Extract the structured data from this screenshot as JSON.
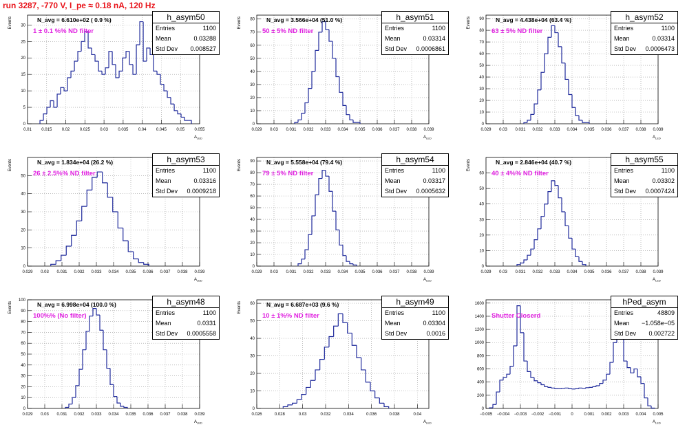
{
  "run_title": "run 3287,  -770 V, I_pe ≈ 0.18 nA, 120 Hz",
  "colors": {
    "line": "#1f2a9b",
    "title": "#e8141b",
    "annotation": "#e020e0",
    "grid": "#9a9a9a"
  },
  "chart_data": [
    {
      "type": "bar",
      "name": "h_asym50",
      "ylabel": "Events",
      "xlabel": "A_LED",
      "n_avg": "N_avg = 6.610e+02 ( 0.9 %)",
      "filter": "1 ± 0.1 %% ND filter",
      "stats": {
        "entries": "1100",
        "mean": "0.03288",
        "std": "0.008527"
      },
      "xlim": [
        0.01,
        0.055
      ],
      "ylim": [
        0,
        33
      ],
      "xticks": [
        "0.01",
        "0.015",
        "0.02",
        "0.025",
        "0.03",
        "0.035",
        "0.04",
        "0.045",
        "0.05",
        "0.055"
      ],
      "yticks": [
        "0",
        "5",
        "10",
        "15",
        "20",
        "25",
        "30"
      ],
      "x": [
        0.0137,
        0.0146,
        0.0155,
        0.0164,
        0.0173,
        0.0182,
        0.0191,
        0.02,
        0.0209,
        0.0218,
        0.0227,
        0.0236,
        0.0245,
        0.0254,
        0.0263,
        0.0272,
        0.0281,
        0.029,
        0.0299,
        0.0308,
        0.0317,
        0.0326,
        0.0335,
        0.0344,
        0.0353,
        0.0362,
        0.0371,
        0.038,
        0.0389,
        0.0398,
        0.0407,
        0.0416,
        0.0425,
        0.0434,
        0.0443,
        0.0452,
        0.0461,
        0.047,
        0.0479,
        0.0488,
        0.0497,
        0.0506,
        0.0515,
        0.0524
      ],
      "values": [
        1,
        3,
        5,
        7,
        5,
        9,
        11,
        10,
        14,
        16,
        19,
        22,
        25,
        28,
        23,
        21,
        19,
        16,
        15,
        17,
        22,
        18,
        14,
        16,
        20,
        22,
        18,
        15,
        24,
        31,
        19,
        23,
        21,
        16,
        15,
        12,
        10,
        8,
        6,
        4,
        3,
        2,
        1,
        1
      ]
    },
    {
      "type": "bar",
      "name": "h_asym51",
      "ylabel": "Events",
      "xlabel": "A_LED",
      "n_avg": "N_avg = 3.566e+04 (51.0 %)",
      "filter": "50 ± 5% ND filter",
      "stats": {
        "entries": "1100",
        "mean": "0.03314",
        "std": "0.0006861"
      },
      "xlim": [
        0.029,
        0.039
      ],
      "ylim": [
        0,
        83
      ],
      "xticks": [
        "0.029",
        "0.03",
        "0.031",
        "0.032",
        "0.033",
        "0.034",
        "0.035",
        "0.036",
        "0.037",
        "0.038",
        "0.039"
      ],
      "yticks": [
        "0",
        "10",
        "20",
        "30",
        "40",
        "50",
        "60",
        "70",
        "80"
      ],
      "x": [
        0.0313,
        0.0315,
        0.0317,
        0.0319,
        0.0321,
        0.0323,
        0.0325,
        0.0327,
        0.0329,
        0.0331,
        0.0333,
        0.0335,
        0.0337,
        0.0339,
        0.0341,
        0.0343,
        0.0345,
        0.0347,
        0.0349
      ],
      "values": [
        1,
        3,
        8,
        16,
        27,
        40,
        56,
        70,
        78,
        72,
        63,
        50,
        36,
        24,
        14,
        7,
        3,
        1,
        1
      ]
    },
    {
      "type": "bar",
      "name": "h_asym52",
      "ylabel": "Events",
      "xlabel": "A_LED",
      "n_avg": "N_avg = 4.438e+04 (63.4 %)",
      "filter": "63 ± 5% ND filter",
      "stats": {
        "entries": "1100",
        "mean": "0.03314",
        "std": "0.0006473"
      },
      "xlim": [
        0.029,
        0.039
      ],
      "ylim": [
        0,
        93
      ],
      "xticks": [
        "0.029",
        "0.03",
        "0.031",
        "0.032",
        "0.033",
        "0.034",
        "0.035",
        "0.036",
        "0.037",
        "0.038",
        "0.039"
      ],
      "yticks": [
        "0",
        "10",
        "20",
        "30",
        "40",
        "50",
        "60",
        "70",
        "80",
        "90"
      ],
      "x": [
        0.0313,
        0.0315,
        0.0317,
        0.0319,
        0.0321,
        0.0323,
        0.0325,
        0.0327,
        0.0329,
        0.0331,
        0.0333,
        0.0335,
        0.0337,
        0.0339,
        0.0341,
        0.0343,
        0.0345,
        0.0347,
        0.0349
      ],
      "values": [
        1,
        3,
        8,
        17,
        29,
        44,
        60,
        74,
        84,
        78,
        66,
        52,
        38,
        25,
        14,
        7,
        3,
        1,
        1
      ]
    },
    {
      "type": "bar",
      "name": "h_asym53",
      "ylabel": "Events",
      "xlabel": "A_LED",
      "n_avg": "N_avg = 1.834e+04 (26.2 %)",
      "filter": "26 ± 2.5%% ND filter",
      "stats": {
        "entries": "1100",
        "mean": "0.03316",
        "std": "0.0009218"
      },
      "xlim": [
        0.029,
        0.039
      ],
      "ylim": [
        0,
        60
      ],
      "xticks": [
        "0.029",
        "0.03",
        "0.031",
        "0.032",
        "0.033",
        "0.034",
        "0.035",
        "0.036",
        "0.037",
        "0.038",
        "0.039"
      ],
      "yticks": [
        "0",
        "10",
        "20",
        "30",
        "40",
        "50"
      ],
      "x": [
        0.0305,
        0.0308,
        0.0311,
        0.0314,
        0.0317,
        0.032,
        0.0323,
        0.0326,
        0.0329,
        0.0332,
        0.0335,
        0.0338,
        0.0341,
        0.0344,
        0.0347,
        0.035,
        0.0353,
        0.0356,
        0.0359
      ],
      "values": [
        1,
        3,
        6,
        11,
        17,
        25,
        33,
        42,
        49,
        52,
        46,
        38,
        30,
        21,
        14,
        8,
        4,
        2,
        1
      ]
    },
    {
      "type": "bar",
      "name": "h_asym54",
      "ylabel": "Events",
      "xlabel": "A_LED",
      "n_avg": "N_avg = 5.558e+04 (79.4 %)",
      "filter": "79 ± 5% ND filter",
      "stats": {
        "entries": "1100",
        "mean": "0.03317",
        "std": "0.0005632"
      },
      "xlim": [
        0.029,
        0.039
      ],
      "ylim": [
        0,
        93
      ],
      "xticks": [
        "0.029",
        "0.03",
        "0.031",
        "0.032",
        "0.033",
        "0.034",
        "0.035",
        "0.036",
        "0.037",
        "0.038",
        "0.039"
      ],
      "yticks": [
        "0",
        "10",
        "20",
        "30",
        "40",
        "50",
        "60",
        "70",
        "80",
        "90"
      ],
      "x": [
        0.0315,
        0.0317,
        0.0319,
        0.0321,
        0.0323,
        0.0325,
        0.0327,
        0.0329,
        0.0331,
        0.0333,
        0.0335,
        0.0337,
        0.0339,
        0.0341,
        0.0343,
        0.0345,
        0.0347
      ],
      "values": [
        2,
        6,
        14,
        27,
        43,
        61,
        75,
        82,
        77,
        64,
        47,
        31,
        18,
        9,
        4,
        2,
        1
      ]
    },
    {
      "type": "bar",
      "name": "h_asym55",
      "ylabel": "Events",
      "xlabel": "A_LED",
      "n_avg": "N_avg = 2.846e+04 (40.7 %)",
      "filter": "40 ± 4%% ND filter",
      "stats": {
        "entries": "1100",
        "mean": "0.03302",
        "std": "0.0007424"
      },
      "xlim": [
        0.029,
        0.039
      ],
      "ylim": [
        0,
        70
      ],
      "xticks": [
        "0.029",
        "0.03",
        "0.031",
        "0.032",
        "0.033",
        "0.034",
        "0.035",
        "0.036",
        "0.037",
        "0.038",
        "0.039"
      ],
      "yticks": [
        "0",
        "10",
        "20",
        "30",
        "40",
        "50",
        "60"
      ],
      "x": [
        0.0309,
        0.0311,
        0.0313,
        0.0315,
        0.0317,
        0.0319,
        0.0321,
        0.0323,
        0.0325,
        0.0327,
        0.0329,
        0.0331,
        0.0333,
        0.0335,
        0.0337,
        0.0339,
        0.0341,
        0.0343,
        0.0345,
        0.0347
      ],
      "values": [
        1,
        2,
        4,
        7,
        11,
        17,
        24,
        32,
        40,
        48,
        55,
        52,
        44,
        35,
        26,
        18,
        11,
        6,
        3,
        1
      ]
    },
    {
      "type": "bar",
      "name": "h_asym48",
      "ylabel": "Events",
      "xlabel": "A_LED",
      "n_avg": "N_avg = 6.998e+04 (100.0 %)",
      "filter": "100%% (No filter)",
      "stats": {
        "entries": "1100",
        "mean": "0.0331",
        "std": "0.0005558"
      },
      "xlim": [
        0.029,
        0.039
      ],
      "ylim": [
        0,
        100
      ],
      "xticks": [
        "0.029",
        "0.03",
        "0.031",
        "0.032",
        "0.033",
        "0.034",
        "0.035",
        "0.036",
        "0.037",
        "0.038",
        "0.039"
      ],
      "yticks": [
        "0",
        "10",
        "20",
        "30",
        "40",
        "50",
        "60",
        "70",
        "80",
        "90",
        "100"
      ],
      "x": [
        0.0313,
        0.0315,
        0.0317,
        0.0319,
        0.0321,
        0.0323,
        0.0325,
        0.0327,
        0.0329,
        0.0331,
        0.0333,
        0.0335,
        0.0337,
        0.0339,
        0.0341,
        0.0343,
        0.0345,
        0.0347
      ],
      "values": [
        1,
        4,
        10,
        21,
        36,
        54,
        71,
        85,
        92,
        86,
        72,
        54,
        37,
        22,
        11,
        5,
        2,
        1
      ]
    },
    {
      "type": "bar",
      "name": "h_asym49",
      "ylabel": "Events",
      "xlabel": "A_LED",
      "n_avg": "N_avg = 6.687e+03 (9.6 %)",
      "filter": "10 ± 1%% ND filter",
      "stats": {
        "entries": "1100",
        "mean": "0.03304",
        "std": "0.0016"
      },
      "xlim": [
        0.026,
        0.041
      ],
      "ylim": [
        0,
        62
      ],
      "xticks": [
        "0.026",
        "0.028",
        "0.03",
        "0.032",
        "0.034",
        "0.036",
        "0.038",
        "0.04"
      ],
      "yticks": [
        "0",
        "10",
        "20",
        "30",
        "40",
        "50",
        "60"
      ],
      "x": [
        0.0285,
        0.0289,
        0.0293,
        0.0297,
        0.0301,
        0.0305,
        0.0309,
        0.0313,
        0.0317,
        0.0321,
        0.0325,
        0.0329,
        0.0333,
        0.0337,
        0.0341,
        0.0345,
        0.0349,
        0.0353,
        0.0357,
        0.0361,
        0.0365,
        0.0369,
        0.0373
      ],
      "values": [
        1,
        2,
        3,
        5,
        8,
        12,
        16,
        22,
        28,
        35,
        41,
        47,
        54,
        49,
        43,
        36,
        29,
        22,
        15,
        10,
        6,
        3,
        1
      ]
    },
    {
      "type": "bar",
      "name": "hPed_asym",
      "ylabel": "",
      "xlabel": "A_LED",
      "n_avg": "",
      "filter": "Shutter Closerd",
      "stats": {
        "entries": "48809",
        "mean": "−1.058e−05",
        "std": "0.002722"
      },
      "xlim": [
        -0.005,
        0.005
      ],
      "ylim": [
        0,
        1650
      ],
      "xticks": [
        "−0.005",
        "−0.004",
        "−0.003",
        "−0.002",
        "−0.001",
        "0",
        "0.001",
        "0.002",
        "0.003",
        "0.004",
        "0.005"
      ],
      "yticks": [
        "0",
        "200",
        "400",
        "600",
        "800",
        "1000",
        "1200",
        "1400",
        "1600"
      ],
      "x": [
        -0.0047,
        -0.0045,
        -0.0043,
        -0.0041,
        -0.0039,
        -0.0037,
        -0.0035,
        -0.0033,
        -0.0031,
        -0.0029,
        -0.0027,
        -0.0025,
        -0.0023,
        -0.0021,
        -0.0019,
        -0.0017,
        -0.0015,
        -0.0013,
        -0.0011,
        -0.0009,
        -0.0007,
        -0.0005,
        -0.0003,
        -0.0001,
        0.0001,
        0.0003,
        0.0005,
        0.0007,
        0.0009,
        0.0011,
        0.0013,
        0.0015,
        0.0017,
        0.0019,
        0.0021,
        0.0023,
        0.0025,
        0.0027,
        0.0029,
        0.0031,
        0.0033,
        0.0035,
        0.0037,
        0.0039,
        0.0041,
        0.0043,
        0.0045,
        0.0047
      ],
      "values": [
        10,
        60,
        250,
        430,
        470,
        520,
        640,
        950,
        1560,
        1150,
        720,
        560,
        470,
        420,
        390,
        360,
        330,
        320,
        310,
        300,
        300,
        305,
        310,
        300,
        295,
        300,
        310,
        305,
        315,
        320,
        330,
        345,
        380,
        430,
        520,
        700,
        1000,
        1550,
        1150,
        720,
        620,
        540,
        600,
        480,
        380,
        160,
        40,
        5
      ]
    }
  ]
}
